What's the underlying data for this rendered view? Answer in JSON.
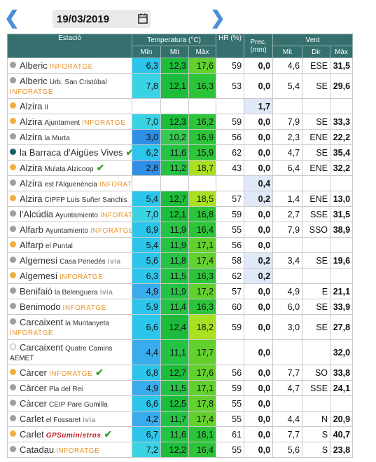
{
  "header": {
    "date": "19/03/2019"
  },
  "table": {
    "columns": {
      "station": "Estació",
      "temperature": "Temperatura (°C)",
      "humidity": "HR (%)",
      "precipitation": "Prec. (mm)",
      "wind": "Vent"
    },
    "subcolumns": [
      "Mín",
      "Mit",
      "Màx",
      "Mit",
      "Dir",
      "Màx"
    ],
    "rows": [
      {
        "name": "Alberic",
        "network": "INFORATGE",
        "dot": "#9e9e9e",
        "values": [
          "6,3",
          "12,3",
          "17,6",
          "59",
          "0,0",
          "4,6",
          "ESE",
          "31,5"
        ]
      },
      {
        "name": "Alberic",
        "place": "Urb. San Cristóbal",
        "network": "INFORATGE",
        "dot": "#9e9e9e",
        "values": [
          "7,8",
          "12,1",
          "16,3",
          "53",
          "0,0",
          "5,4",
          "SE",
          "29,6"
        ]
      },
      {
        "name": "Alzira",
        "place": "II",
        "dot": "#f0b040",
        "values": [
          null,
          null,
          null,
          null,
          "1,7",
          null,
          null,
          null
        ]
      },
      {
        "name": "Alzira",
        "place": "Ajuntament",
        "network": "INFORATGE",
        "dot": "#f0b040",
        "values": [
          "7,0",
          "12,3",
          "16,2",
          "59",
          "0,0",
          "7,9",
          "SE",
          "33,3"
        ]
      },
      {
        "name": "Alzira",
        "place": "la Murta",
        "dot": "#9e9e9e",
        "values": [
          "3,0",
          "10,2",
          "16,9",
          "56",
          "0,0",
          "2,3",
          "ENE",
          "22,2"
        ]
      },
      {
        "name": "la Barraca d'Aigües Vives",
        "dot": "#1f5f5f",
        "verified": true,
        "values": [
          "6,2",
          "11,6",
          "15,9",
          "62",
          "0,0",
          "4,7",
          "SE",
          "35,4"
        ]
      },
      {
        "name": "Alzira",
        "place": "Mulata Alzicoop",
        "dot": "#f0b040",
        "verified": true,
        "values": [
          "2,8",
          "11,2",
          "18,7",
          "43",
          "0,0",
          "6,4",
          "ENE",
          "32,2"
        ]
      },
      {
        "name": "Alzira",
        "place": "est l'Alquenència",
        "network": "INFORATGE",
        "dot": "#9e9e9e",
        "values": [
          null,
          null,
          null,
          null,
          "0,4",
          null,
          null,
          null
        ]
      },
      {
        "name": "Alzira",
        "place": "CIPFP Luis Suñer Sanchis",
        "dot": "#f0b040",
        "values": [
          "5,4",
          "12,7",
          "18,5",
          "57",
          "0,2",
          "1,4",
          "ENE",
          "13,0"
        ]
      },
      {
        "name": "l'Alcúdia",
        "place": "Ayuntamiento",
        "network": "INFORATGE",
        "dot": "#9e9e9e",
        "values": [
          "7,0",
          "12,1",
          "16,8",
          "59",
          "0,0",
          "2,7",
          "SSE",
          "31,5"
        ]
      },
      {
        "name": "Alfarb",
        "place": "Ayuntamiento",
        "network": "INFORATGE",
        "dot": "#9e9e9e",
        "values": [
          "6,9",
          "11,9",
          "16,4",
          "55",
          "0,0",
          "7,9",
          "SSO",
          "38,9"
        ]
      },
      {
        "name": "Alfarp",
        "place": "el Puntal",
        "dot": "#f0b040",
        "values": [
          "5,4",
          "11,9",
          "17,1",
          "56",
          "0,0",
          null,
          null,
          null
        ]
      },
      {
        "name": "Algemesí",
        "place": "Casa Penedés",
        "network": "ivia",
        "dot": "#9e9e9e",
        "values": [
          "5,6",
          "11,8",
          "17,4",
          "58",
          "0,2",
          "3,4",
          "SE",
          "19,6"
        ]
      },
      {
        "name": "Algemesí",
        "network": "INFORATGE",
        "dot": "#f0b040",
        "values": [
          "6,3",
          "11,5",
          "16,3",
          "62",
          "0,2",
          null,
          null,
          null
        ]
      },
      {
        "name": "Benifaió",
        "place": "la Belenguera",
        "network": "ivia",
        "dot": "#9e9e9e",
        "values": [
          "4,9",
          "11,9",
          "17,2",
          "57",
          "0,0",
          "4,9",
          "E",
          "21,1"
        ]
      },
      {
        "name": "Benimodo",
        "network": "INFORATGE",
        "dot": "#9e9e9e",
        "values": [
          "5,9",
          "11,4",
          "16,3",
          "60",
          "0,0",
          "6,0",
          "SE",
          "33,9"
        ]
      },
      {
        "name": "Carcaixent",
        "place": "la Muntanyeta",
        "network": "INFORATGE",
        "dot": "#9e9e9e",
        "values": [
          "6,6",
          "12,4",
          "18,2",
          "59",
          "0,0",
          "3,0",
          "SE",
          "27,8"
        ]
      },
      {
        "name": "Carcaixent",
        "place": "Quatre Camins",
        "network": "AEMET",
        "dot": "#ffffff",
        "values": [
          "4,4",
          "11,1",
          "17,7",
          null,
          "0,0",
          null,
          null,
          "32,0"
        ]
      },
      {
        "name": "Càrcer",
        "network": "INFORATGE",
        "dot": "#f0b040",
        "verified": true,
        "values": [
          "6,8",
          "12,7",
          "17,6",
          "56",
          "0,0",
          "7,7",
          "SO",
          "33,8"
        ]
      },
      {
        "name": "Càrcer",
        "place": "Pla del Rei",
        "dot": "#9e9e9e",
        "values": [
          "4,9",
          "11,5",
          "17,1",
          "59",
          "0,0",
          "4,7",
          "SSE",
          "24,1"
        ]
      },
      {
        "name": "Càrcer",
        "place": "CEIP Pare Gumilla",
        "dot": "#9e9e9e",
        "values": [
          "6,6",
          "12,5",
          "17,8",
          "55",
          "0,0",
          null,
          null,
          null
        ]
      },
      {
        "name": "Carlet",
        "place": "el Fossaret",
        "network": "ivia",
        "dot": "#9e9e9e",
        "values": [
          "4,2",
          "11,7",
          "17,4",
          "55",
          "0,0",
          "4,4",
          "N",
          "20,9"
        ]
      },
      {
        "name": "Carlet",
        "network": "GPSuministros",
        "dot": "#f0b040",
        "verified": true,
        "values": [
          "6,7",
          "11,6",
          "16,1",
          "61",
          "0,0",
          "7,7",
          "S",
          "40,7"
        ]
      },
      {
        "name": "Catadau",
        "network": "INFORATGE",
        "dot": "#9e9e9e",
        "values": [
          "7,2",
          "12,2",
          "16,4",
          "55",
          "0,0",
          "5,6",
          "S",
          "23,8"
        ]
      }
    ]
  }
}
